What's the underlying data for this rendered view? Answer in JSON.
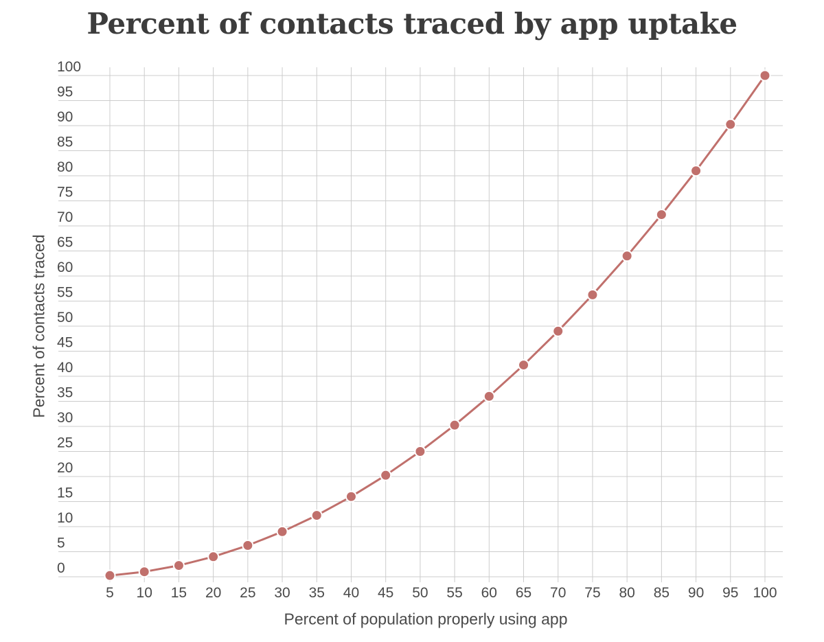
{
  "chart_data": {
    "type": "line",
    "title": "Percent of contacts traced by app uptake",
    "xlabel": "Percent of population properly using app",
    "ylabel": "Percent of contacts traced",
    "x": [
      5,
      10,
      15,
      20,
      25,
      30,
      35,
      40,
      45,
      50,
      55,
      60,
      65,
      70,
      75,
      80,
      85,
      90,
      95,
      100
    ],
    "series": [
      {
        "values": [
          0.25,
          1,
          2.25,
          4,
          6.25,
          9,
          12.25,
          16,
          20.25,
          25,
          30.25,
          36,
          42.25,
          49,
          56.25,
          64,
          72.25,
          81,
          90.25,
          100
        ]
      }
    ],
    "xticks": [
      "5",
      "10",
      "15",
      "20",
      "25",
      "30",
      "35",
      "40",
      "45",
      "50",
      "55",
      "60",
      "65",
      "70",
      "75",
      "80",
      "85",
      "90",
      "95",
      "100"
    ],
    "yticks": [
      "0",
      "5",
      "10",
      "15",
      "20",
      "25",
      "30",
      "35",
      "40",
      "45",
      "50",
      "55",
      "60",
      "65",
      "70",
      "75",
      "80",
      "85",
      "90",
      "95",
      "100"
    ],
    "ylim": [
      0,
      100
    ],
    "grid": true,
    "colors": {
      "line": "#c0706c",
      "grid": "#cccccc",
      "marker_stroke": "#ffffff"
    }
  }
}
